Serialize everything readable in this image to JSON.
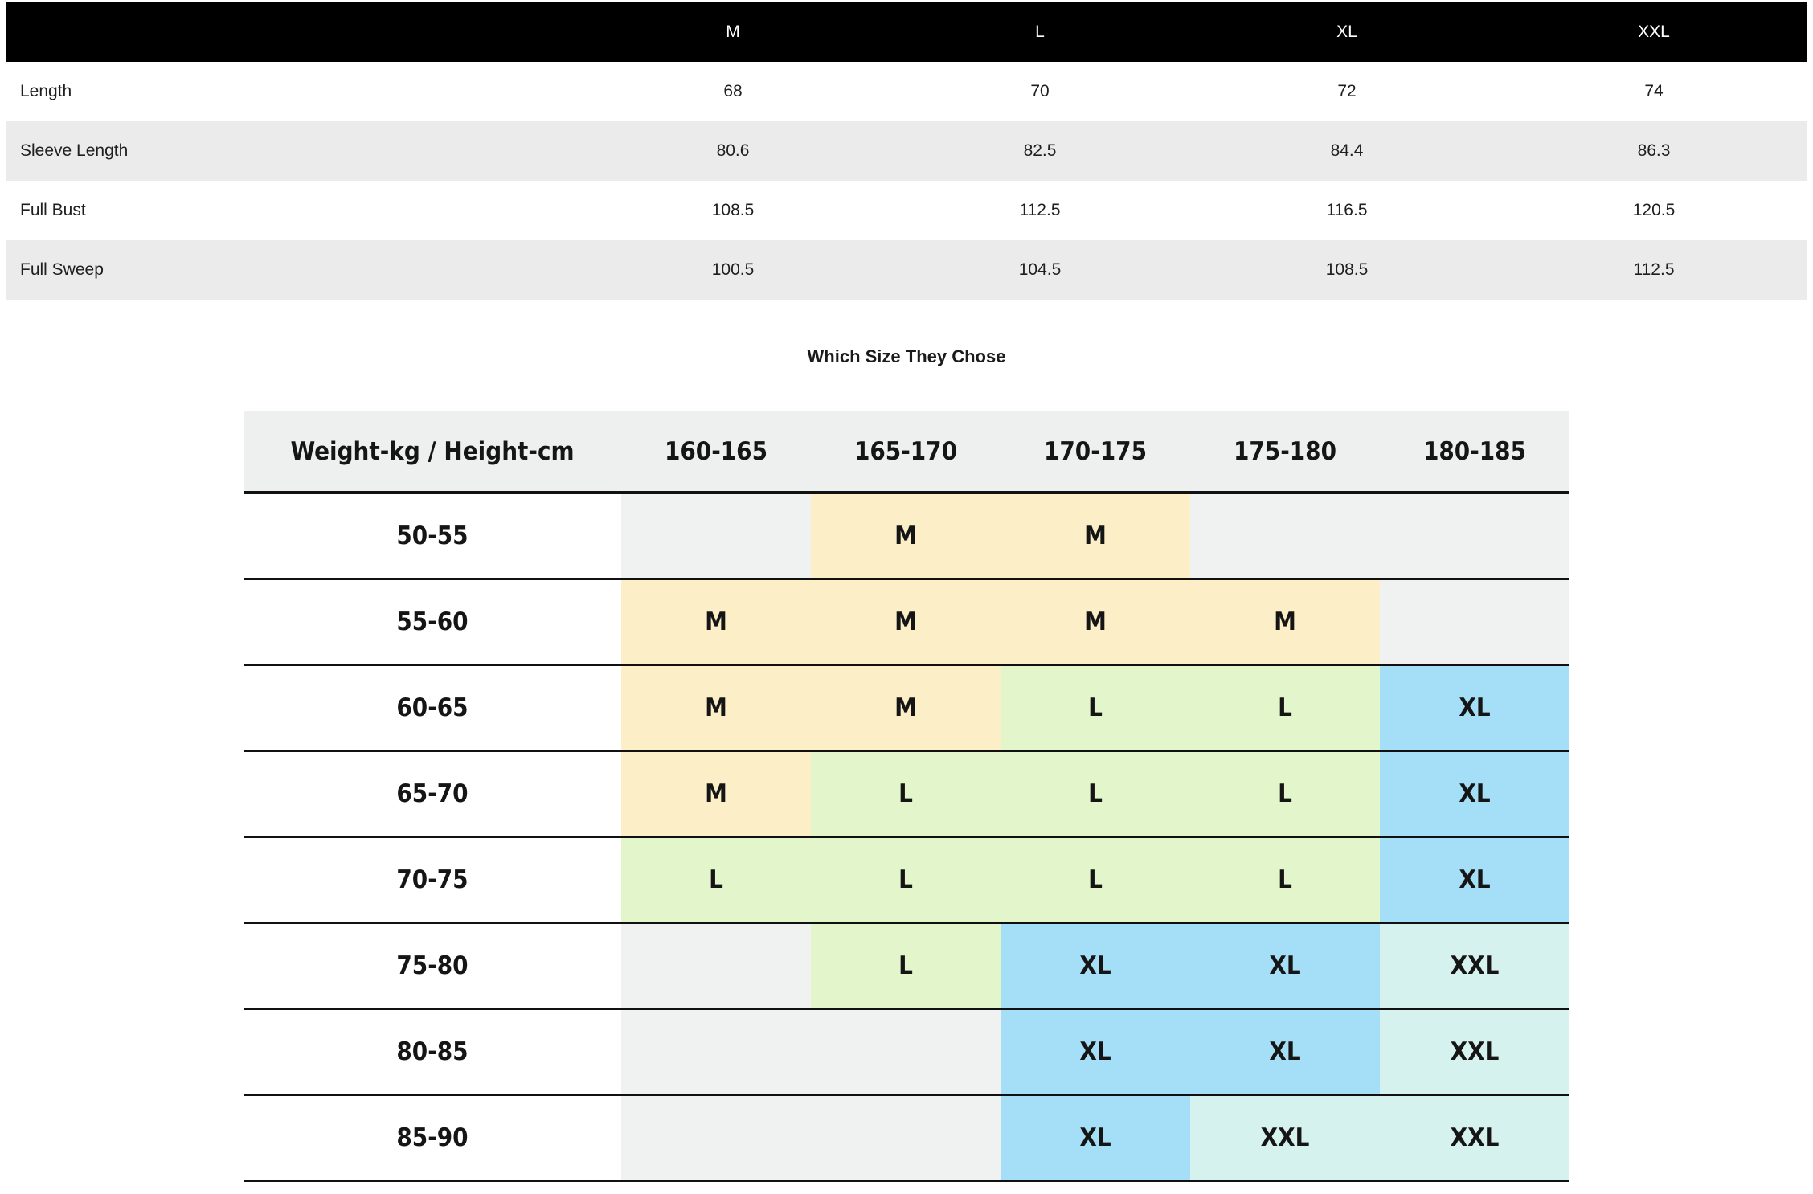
{
  "size_table": {
    "columns": [
      "M",
      "L",
      "XL",
      "XXL"
    ],
    "rows": [
      {
        "label": "Length",
        "values": [
          "68",
          "70",
          "72",
          "74"
        ]
      },
      {
        "label": "Sleeve Length",
        "values": [
          "80.6",
          "82.5",
          "84.4",
          "86.3"
        ]
      },
      {
        "label": "Full Bust",
        "values": [
          "108.5",
          "112.5",
          "116.5",
          "120.5"
        ]
      },
      {
        "label": "Full Sweep",
        "values": [
          "100.5",
          "104.5",
          "108.5",
          "112.5"
        ]
      }
    ],
    "header_bg": "#000000",
    "shade_row_bg": "#ebebeb"
  },
  "size_chart": {
    "title": "Which Size They Chose",
    "header": [
      "Weight-kg / Height-cm",
      "160-165",
      "165-170",
      "170-175",
      "175-180",
      "180-185"
    ],
    "size_colors": {
      "M": "#fcefc7",
      "L": "#e2f5cb",
      "XL": "#a5dff7",
      "XXL": "#d5f2ee",
      "none": "#f0f1f1"
    },
    "rows": [
      {
        "label": "50-55",
        "cells": [
          {
            "text": "",
            "bg": "#f0f1f1"
          },
          {
            "text": "M",
            "bg": "#fcefc7"
          },
          {
            "text": "M",
            "bg": "#fcefc7"
          },
          {
            "text": "",
            "bg": "#f0f1f1"
          },
          {
            "text": "",
            "bg": "#f0f1f1"
          }
        ]
      },
      {
        "label": "55-60",
        "cells": [
          {
            "text": "M",
            "bg": "#fcefc7"
          },
          {
            "text": "M",
            "bg": "#fcefc7"
          },
          {
            "text": "M",
            "bg": "#fcefc7"
          },
          {
            "text": "M",
            "bg": "#fcefc7"
          },
          {
            "text": "",
            "bg": "#f0f1f1"
          }
        ]
      },
      {
        "label": "60-65",
        "cells": [
          {
            "text": "M",
            "bg": "#fcefc7"
          },
          {
            "text": "M",
            "bg": "#fcefc7"
          },
          {
            "text": "L",
            "bg": "#e2f5cb"
          },
          {
            "text": "L",
            "bg": "#e2f5cb"
          },
          {
            "text": "XL",
            "bg": "#a5dff7"
          }
        ]
      },
      {
        "label": "65-70",
        "cells": [
          {
            "text": "M",
            "bg": "#fcefc7"
          },
          {
            "text": "L",
            "bg": "#e2f5cb"
          },
          {
            "text": "L",
            "bg": "#e2f5cb"
          },
          {
            "text": "L",
            "bg": "#e2f5cb"
          },
          {
            "text": "XL",
            "bg": "#a5dff7"
          }
        ]
      },
      {
        "label": "70-75",
        "cells": [
          {
            "text": "L",
            "bg": "#e2f5cb"
          },
          {
            "text": "L",
            "bg": "#e2f5cb"
          },
          {
            "text": "L",
            "bg": "#e2f5cb"
          },
          {
            "text": "L",
            "bg": "#e2f5cb"
          },
          {
            "text": "XL",
            "bg": "#a5dff7"
          }
        ]
      },
      {
        "label": "75-80",
        "cells": [
          {
            "text": "",
            "bg": "#f0f1f1"
          },
          {
            "text": "L",
            "bg": "#e2f5cb"
          },
          {
            "text": "XL",
            "bg": "#a5dff7"
          },
          {
            "text": "XL",
            "bg": "#a5dff7"
          },
          {
            "text": "XXL",
            "bg": "#d5f2ee"
          }
        ]
      },
      {
        "label": "80-85",
        "cells": [
          {
            "text": "",
            "bg": "#f0f1f1"
          },
          {
            "text": "",
            "bg": "#f0f1f1"
          },
          {
            "text": "XL",
            "bg": "#a5dff7"
          },
          {
            "text": "XL",
            "bg": "#a5dff7"
          },
          {
            "text": "XXL",
            "bg": "#d5f2ee"
          }
        ]
      },
      {
        "label": "85-90",
        "cells": [
          {
            "text": "",
            "bg": "#f0f1f1"
          },
          {
            "text": "",
            "bg": "#f0f1f1"
          },
          {
            "text": "XL",
            "bg": "#a5dff7"
          },
          {
            "text": "XXL",
            "bg": "#d5f2ee"
          },
          {
            "text": "XXL",
            "bg": "#d5f2ee"
          }
        ]
      }
    ]
  }
}
